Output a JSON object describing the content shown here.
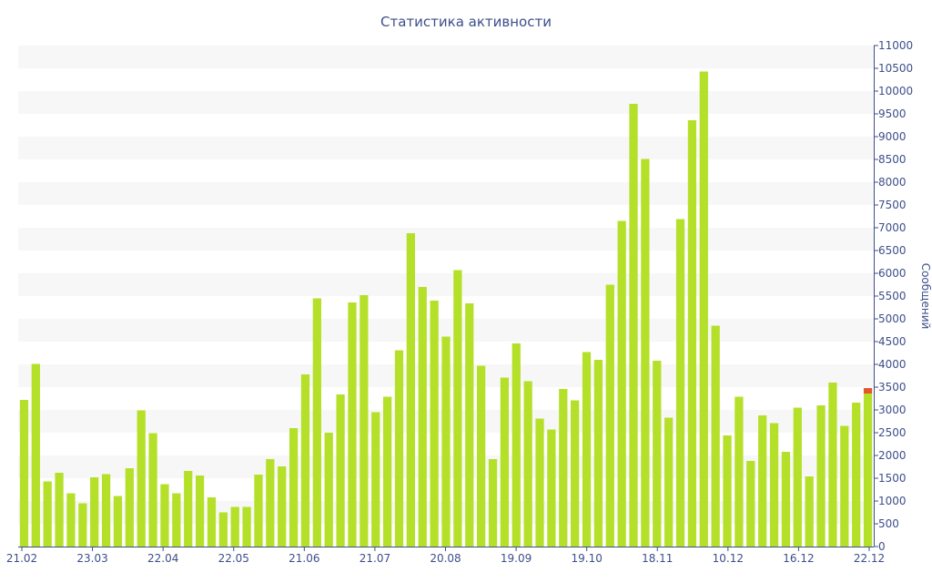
{
  "colors": {
    "bar": "#b5e02a",
    "highlight": "#e4572e",
    "band": "#f7f7f7",
    "axis": "#3d4f8a"
  },
  "chart_data": {
    "type": "bar",
    "title": "Статистика активности",
    "ylabel": "Сообщений",
    "xlabel": "",
    "ylim": [
      0,
      11000
    ],
    "y_ticks": [
      0,
      500,
      1000,
      1500,
      2000,
      2500,
      3000,
      3500,
      4000,
      4500,
      5000,
      5500,
      6000,
      6500,
      7000,
      7500,
      8000,
      8500,
      9000,
      9500,
      10000,
      10500,
      11000
    ],
    "x_tick_labels": [
      "21.02",
      "23.03",
      "22.04",
      "22.05",
      "21.06",
      "21.07",
      "20.08",
      "19.09",
      "19.10",
      "18.11",
      "10.12",
      "16.12",
      "22.12"
    ],
    "values": [
      3220,
      4010,
      1430,
      1620,
      1170,
      950,
      1520,
      1590,
      1110,
      1720,
      2990,
      2490,
      1370,
      1170,
      1660,
      1560,
      1080,
      750,
      870,
      870,
      1580,
      1920,
      1760,
      2600,
      3780,
      5450,
      2500,
      3340,
      5360,
      5520,
      2950,
      3290,
      4310,
      6880,
      5700,
      5400,
      4610,
      6070,
      5340,
      3970,
      1920,
      3710,
      4460,
      3630,
      2810,
      2570,
      3460,
      3210,
      4270,
      4100,
      5750,
      7150,
      9720,
      8510,
      4080,
      2830,
      7190,
      9360,
      10430,
      4850,
      2440,
      3290,
      1880,
      2880,
      2710,
      2080,
      3050,
      1540,
      3100,
      3600,
      2650,
      3160,
      3360
    ],
    "highlight_last": 120,
    "grid": "horizontal bands",
    "legend": "none",
    "y_axis_side": "right"
  }
}
